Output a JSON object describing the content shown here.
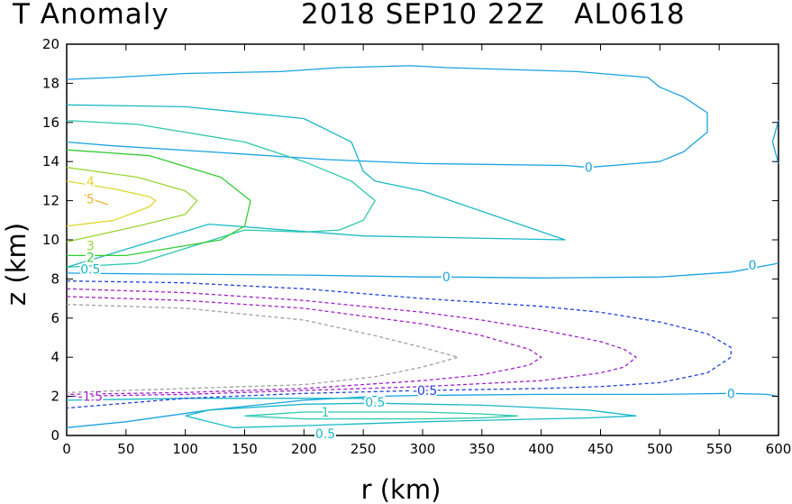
{
  "title_left": "T Anomaly",
  "title_right": "2018 SEP10 22Z   AL0618",
  "chart_data": {
    "type": "contour",
    "xlabel": "r (km)",
    "ylabel": "z (km)",
    "xlim": [
      0,
      600
    ],
    "ylim": [
      0,
      20
    ],
    "xticks": [
      "0",
      "50",
      "100",
      "150",
      "200",
      "250",
      "300",
      "350",
      "400",
      "450",
      "500",
      "550",
      "600"
    ],
    "yticks": [
      "0",
      "2",
      "4",
      "6",
      "8",
      "10",
      "12",
      "14",
      "16",
      "18",
      "20"
    ],
    "grid": false,
    "contours": [
      {
        "level": 0,
        "style": "solid",
        "color": "#1aa3e0",
        "x": [
          0,
          40,
          100,
          180,
          230,
          290,
          320,
          430,
          490,
          500,
          520,
          540,
          540,
          530,
          520,
          500,
          480,
          440,
          420,
          300,
          220,
          120,
          40,
          0
        ],
        "y": [
          18.2,
          18.3,
          18.5,
          18.6,
          18.8,
          18.9,
          18.8,
          18.6,
          18.3,
          17.8,
          17.3,
          16.5,
          15.5,
          15,
          14.5,
          14,
          13.9,
          13.7,
          13.8,
          13.9,
          14.1,
          14.5,
          14.8,
          15
        ]
      },
      {
        "level": 0,
        "style": "solid",
        "color": "#1aa3e0",
        "x": [
          600,
          595,
          600
        ],
        "y": [
          16.1,
          15,
          13.9
        ]
      },
      {
        "level": 0,
        "style": "solid",
        "color": "#1aa3e0",
        "x": [
          0,
          80,
          200,
          300,
          320,
          400,
          500,
          560,
          600
        ],
        "y": [
          8.3,
          8.25,
          8.2,
          8.1,
          8.1,
          8.05,
          8.1,
          8.35,
          8.8
        ]
      },
      {
        "level": 0,
        "style": "solid",
        "color": "#1aa3e0",
        "x": [
          0,
          50,
          120,
          200,
          260,
          300,
          400,
          500,
          560,
          590,
          600
        ],
        "y": [
          0.4,
          0.7,
          1.3,
          1.8,
          2.0,
          2.05,
          2.1,
          2.1,
          2.15,
          2.1,
          2.0
        ]
      },
      {
        "level": 0.5,
        "style": "solid",
        "color": "#19b8c8",
        "x": [
          0,
          100,
          200,
          240,
          250,
          260,
          300,
          420,
          250,
          120,
          0
        ],
        "y": [
          16.9,
          16.8,
          16.2,
          15,
          13.5,
          13,
          12.5,
          10,
          10.2,
          10.8,
          8.6
        ]
      },
      {
        "level": 0.5,
        "style": "solid",
        "color": "#19b8c8",
        "x": [
          0,
          100,
          200,
          250,
          250
        ],
        "y": [
          1.8,
          1.9,
          1.9,
          1.9,
          1.8
        ]
      },
      {
        "level": 0.5,
        "style": "solid",
        "color": "#19b8c8",
        "x": [
          100,
          120,
          200,
          260,
          350,
          440,
          480,
          440,
          300,
          200,
          140,
          100
        ],
        "y": [
          1.0,
          1.3,
          1.6,
          1.65,
          1.55,
          1.3,
          1.0,
          0.9,
          0.7,
          0.5,
          0.4,
          1.0
        ]
      },
      {
        "level": 1,
        "style": "solid",
        "color": "#2ec8b0",
        "x": [
          0,
          60,
          150,
          200,
          240,
          260,
          250,
          230,
          200,
          150,
          60,
          0
        ],
        "y": [
          16.1,
          15.9,
          15,
          14,
          13,
          12,
          11,
          10.5,
          10.4,
          10.5,
          8.8,
          8.6
        ]
      },
      {
        "level": 1,
        "style": "solid",
        "color": "#2ec8b0",
        "x": [
          150,
          200,
          300,
          350,
          380,
          350,
          300,
          200,
          150
        ],
        "y": [
          1.0,
          1.2,
          1.2,
          1.1,
          1.0,
          0.9,
          0.85,
          0.85,
          1.0
        ]
      },
      {
        "level": 2,
        "style": "solid",
        "color": "#33cc33",
        "x": [
          0,
          70,
          130,
          155,
          150,
          130,
          100,
          50,
          0
        ],
        "y": [
          14.6,
          14.3,
          13.2,
          12,
          10.7,
          10,
          9.7,
          9.2,
          9.2
        ]
      },
      {
        "level": 3,
        "style": "solid",
        "color": "#99d633",
        "x": [
          0,
          60,
          100,
          110,
          100,
          60,
          0
        ],
        "y": [
          13.7,
          13.2,
          12.5,
          12,
          11.3,
          10.7,
          9.9
        ]
      },
      {
        "level": 4,
        "style": "solid",
        "color": "#e0d830",
        "x": [
          0,
          40,
          70,
          75,
          70,
          40,
          0
        ],
        "y": [
          13,
          12.6,
          12.2,
          12,
          11.7,
          11,
          10.7
        ]
      },
      {
        "level": 5,
        "style": "solid",
        "color": "#e8b830",
        "x": [
          15,
          25,
          35
        ],
        "y": [
          12.3,
          12,
          11.8
        ]
      },
      {
        "level": -0.5,
        "style": "dashed",
        "color": "#2040d8",
        "x": [
          0,
          100,
          200,
          300,
          400,
          450,
          500,
          540,
          560,
          560,
          540,
          500,
          450,
          400,
          300,
          200,
          100,
          0
        ],
        "y": [
          7.9,
          7.8,
          7.5,
          7.0,
          6.6,
          6.3,
          5.8,
          5.2,
          4.5,
          4.0,
          3.2,
          2.7,
          2.5,
          2.4,
          2.3,
          2.15,
          1.9,
          1.4
        ]
      },
      {
        "level": -1,
        "style": "dashed",
        "color": "#a020c8",
        "x": [
          0,
          100,
          200,
          300,
          350,
          400,
          450,
          470,
          480,
          470,
          450,
          400,
          300,
          200,
          100,
          0
        ],
        "y": [
          7.5,
          7.3,
          6.9,
          6.3,
          5.9,
          5.4,
          4.8,
          4.4,
          4.0,
          3.5,
          3.2,
          2.8,
          2.5,
          2.3,
          2.1,
          2.0
        ]
      },
      {
        "level": -1.5,
        "style": "dashed",
        "color": "#a020c8",
        "x": [
          0,
          100,
          200,
          300,
          350,
          390,
          400,
          390,
          350,
          300,
          200,
          100,
          0
        ],
        "y": [
          7.1,
          6.9,
          6.5,
          5.7,
          5.1,
          4.4,
          4.0,
          3.6,
          3.1,
          2.8,
          2.4,
          2.2,
          2.1
        ]
      },
      {
        "level": -2,
        "style": "dashed",
        "color": "#a0a0a0",
        "x": [
          0,
          100,
          200,
          260,
          300,
          330,
          300,
          260,
          200,
          100,
          0
        ],
        "y": [
          6.7,
          6.5,
          5.9,
          5.1,
          4.5,
          4.0,
          3.5,
          3.0,
          2.6,
          2.4,
          2.2
        ]
      }
    ],
    "contour_labels": [
      {
        "text": "0",
        "x": 440,
        "y": 13.7,
        "color": "#1aa3e0"
      },
      {
        "text": "0",
        "x": 320,
        "y": 8.1,
        "color": "#1aa3e0"
      },
      {
        "text": "0",
        "x": 578,
        "y": 8.7,
        "color": "#1aa3e0"
      },
      {
        "text": "0",
        "x": 560,
        "y": 2.15,
        "color": "#1aa3e0"
      },
      {
        "text": "4",
        "x": 20,
        "y": 13,
        "color": "#e0d830"
      },
      {
        "text": "5",
        "x": 20,
        "y": 12.1,
        "color": "#e8b830"
      },
      {
        "text": "3",
        "x": 20,
        "y": 9.7,
        "color": "#99d633"
      },
      {
        "text": "2",
        "x": 20,
        "y": 9.1,
        "color": "#33cc33"
      },
      {
        "text": "0.5",
        "x": 20,
        "y": 8.5,
        "color": "#19b8c8"
      },
      {
        "text": "-0.5",
        "x": 302,
        "y": 2.3,
        "color": "#2040d8"
      },
      {
        "text": "-1.5",
        "x": 20,
        "y": 2.0,
        "color": "#a020c8"
      },
      {
        "text": "0.5",
        "x": 260,
        "y": 1.7,
        "color": "#19b8c8"
      },
      {
        "text": "1",
        "x": 218,
        "y": 1.2,
        "color": "#2ec8b0"
      },
      {
        "text": "0.5",
        "x": 218,
        "y": 0.1,
        "color": "#19b8c8"
      }
    ]
  }
}
